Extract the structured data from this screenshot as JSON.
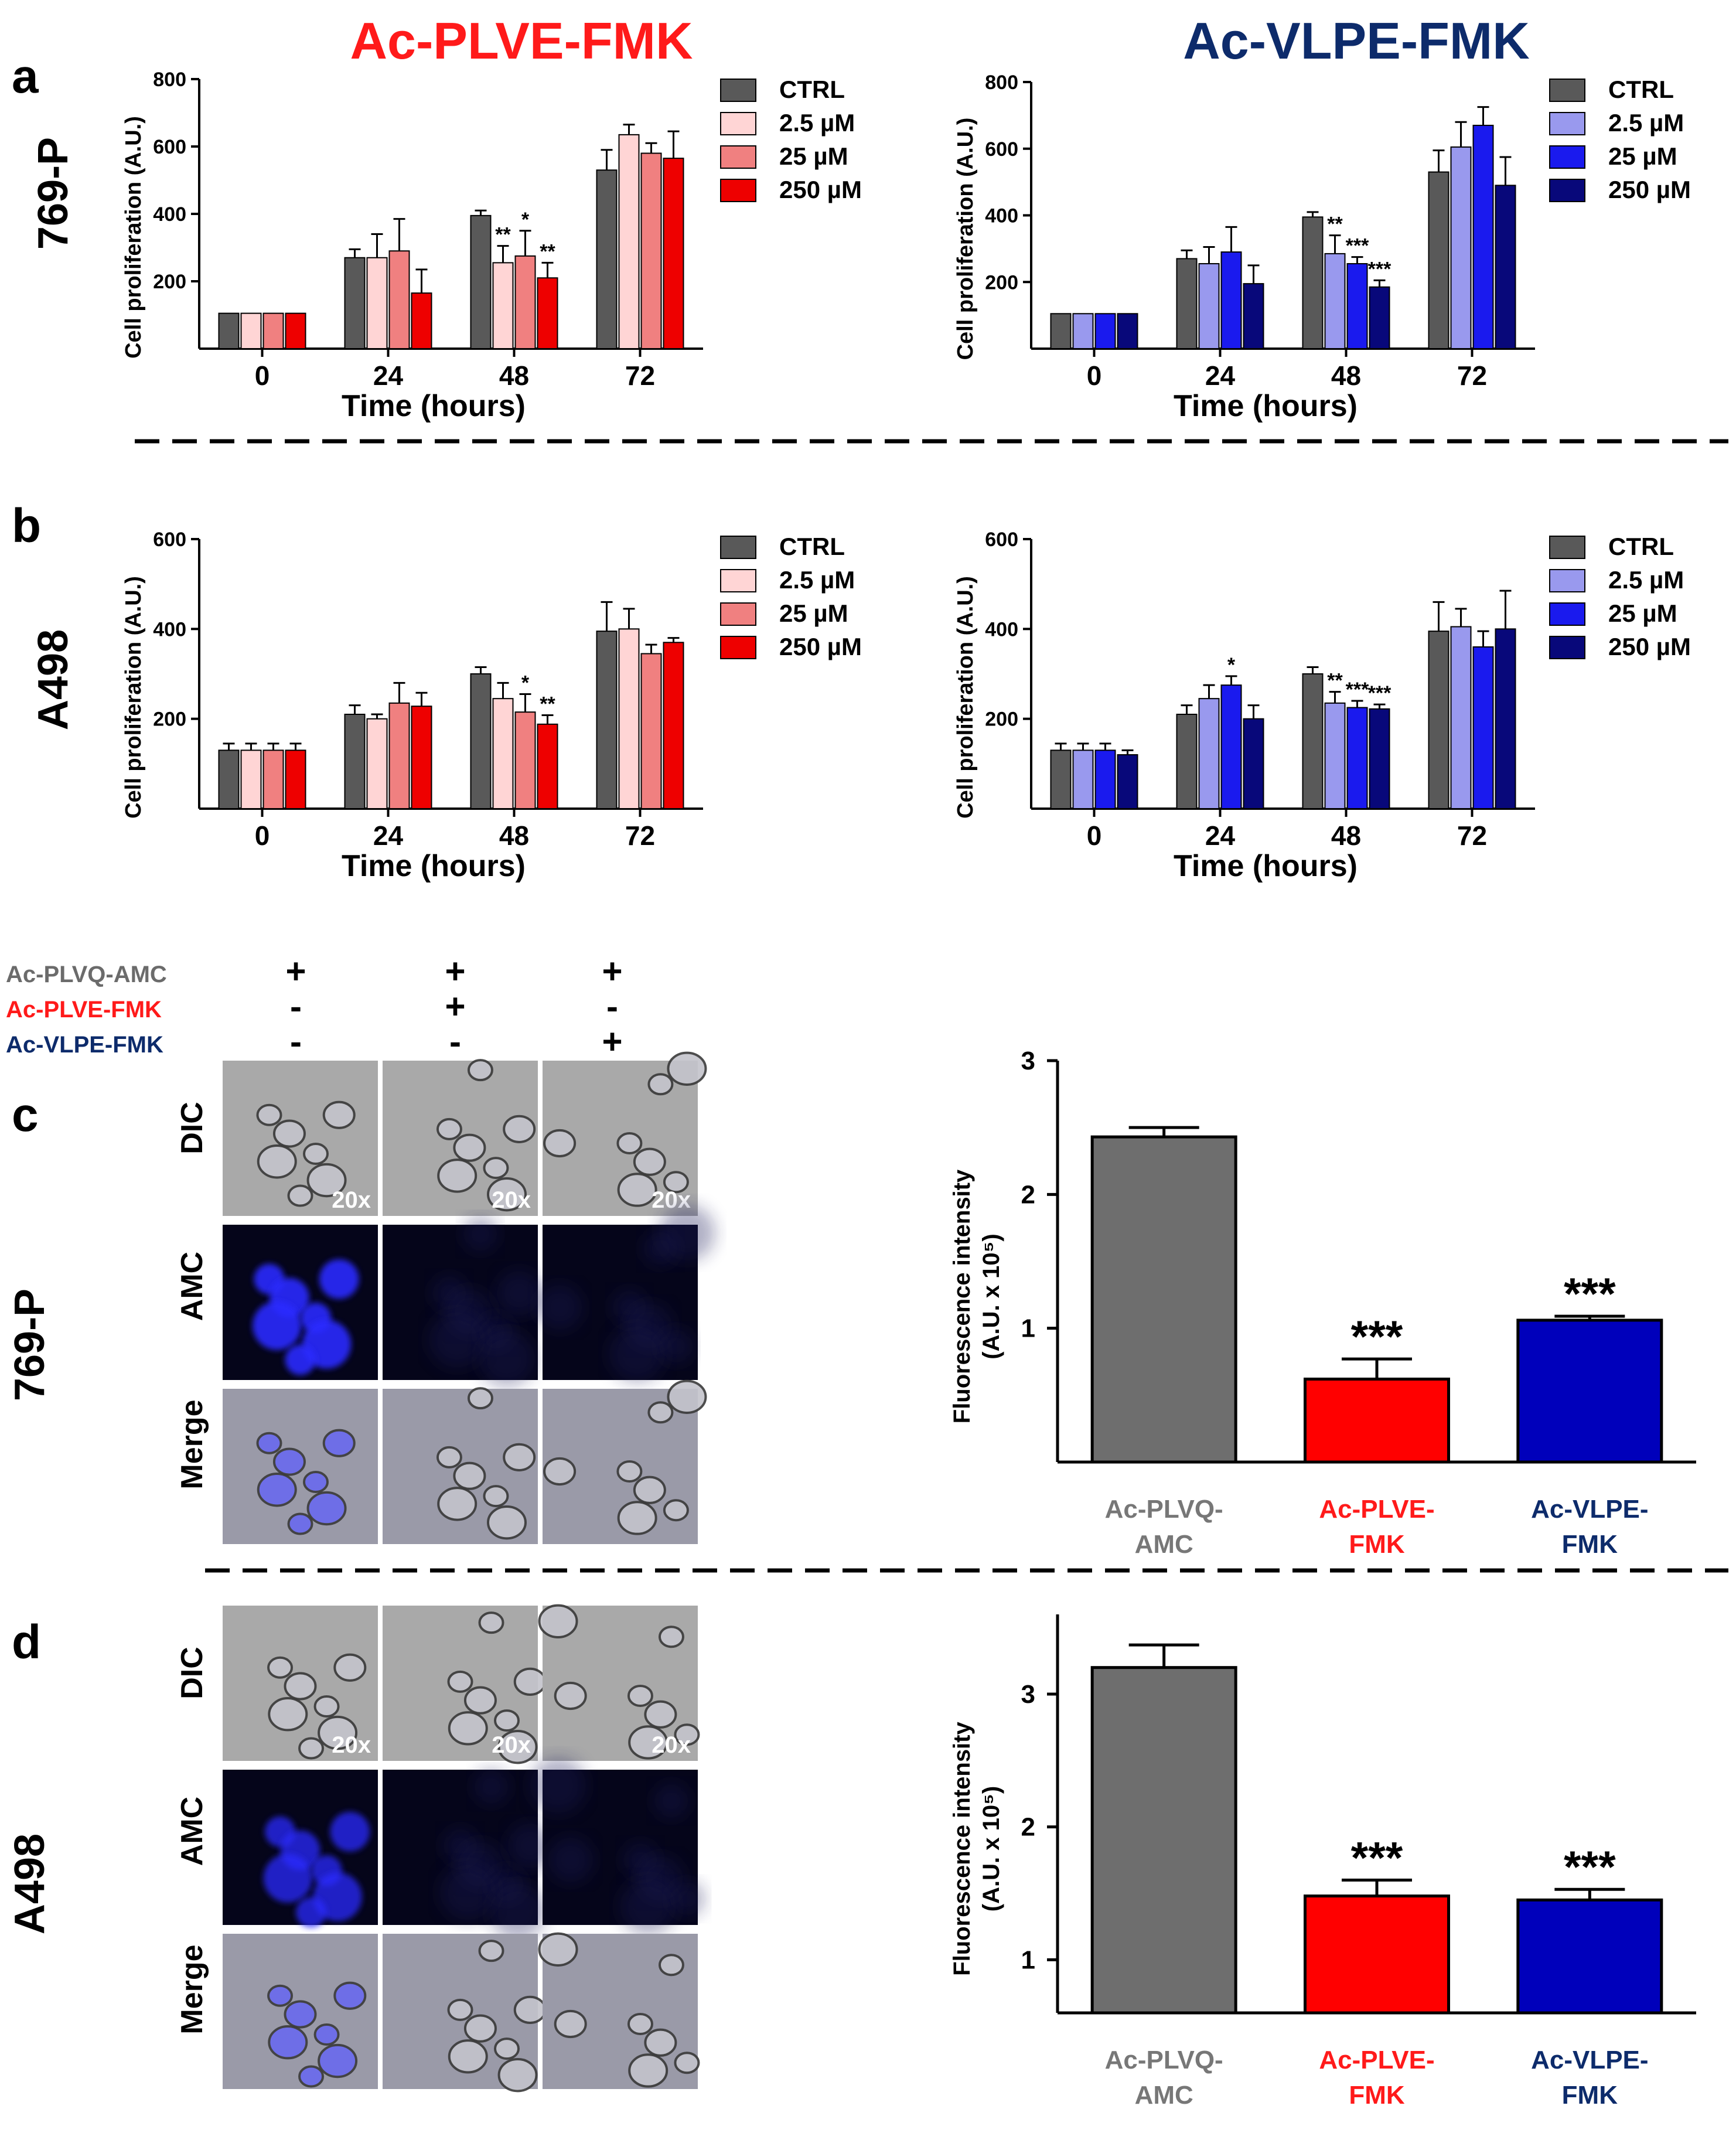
{
  "headers": {
    "left": "Ac-PLVE-FMK",
    "right": "Ac-VLPE-FMK",
    "left_color": "#ff1a1a",
    "right_color": "#0d2b6b"
  },
  "panel_letters": [
    "a",
    "b",
    "c",
    "d"
  ],
  "row_labels": {
    "a": "769-P",
    "b": "A498",
    "c": "769-P",
    "d": "A498"
  },
  "palettes": {
    "ctrl": "#595959",
    "plve": [
      "#ffd5d5",
      "#f08080",
      "#ee0000"
    ],
    "vlpe": [
      "#9999ee",
      "#1a1aee",
      "#08087a"
    ]
  },
  "chart_data": [
    {
      "id": "a-left",
      "type": "bar",
      "panel": "a",
      "treatment": "Ac-PLVE-FMK",
      "cell_line": "769-P",
      "categories": [
        "0",
        "24",
        "48",
        "72"
      ],
      "xlabel": "Time (hours)",
      "ylabel": "Cell proliferation (A.U.)",
      "ylim": [
        0,
        800
      ],
      "yticks": [
        200,
        400,
        600,
        800
      ],
      "legend": [
        "CTRL",
        "2.5 µM",
        "25 µM",
        "250 µM"
      ],
      "legend_position": "right",
      "series": [
        {
          "name": "CTRL",
          "values": [
            105,
            270,
            395,
            530
          ],
          "errors": [
            0,
            25,
            15,
            60
          ],
          "sig": [
            "",
            "",
            "",
            ""
          ]
        },
        {
          "name": "2.5 µM",
          "values": [
            105,
            270,
            255,
            635
          ],
          "errors": [
            0,
            70,
            50,
            30
          ],
          "sig": [
            "",
            "",
            "**",
            ""
          ]
        },
        {
          "name": "25 µM",
          "values": [
            105,
            290,
            275,
            580
          ],
          "errors": [
            0,
            95,
            75,
            30
          ],
          "sig": [
            "",
            "",
            "*",
            ""
          ]
        },
        {
          "name": "250 µM",
          "values": [
            105,
            165,
            210,
            565
          ],
          "errors": [
            0,
            70,
            45,
            80
          ],
          "sig": [
            "",
            "",
            "**",
            ""
          ]
        }
      ]
    },
    {
      "id": "a-right",
      "type": "bar",
      "panel": "a",
      "treatment": "Ac-VLPE-FMK",
      "cell_line": "769-P",
      "categories": [
        "0",
        "24",
        "48",
        "72"
      ],
      "xlabel": "Time (hours)",
      "ylabel": "Cell proliferation (A.U.)",
      "ylim": [
        0,
        800
      ],
      "yticks": [
        200,
        400,
        600,
        800
      ],
      "legend": [
        "CTRL",
        "2.5 µM",
        "25 µM",
        "250 µM"
      ],
      "legend_position": "right",
      "series": [
        {
          "name": "CTRL",
          "values": [
            105,
            270,
            395,
            530
          ],
          "errors": [
            0,
            25,
            15,
            65
          ],
          "sig": [
            "",
            "",
            "",
            ""
          ]
        },
        {
          "name": "2.5 µM",
          "values": [
            105,
            255,
            285,
            605
          ],
          "errors": [
            0,
            50,
            55,
            75
          ],
          "sig": [
            "",
            "",
            "**",
            ""
          ]
        },
        {
          "name": "25 µM",
          "values": [
            105,
            290,
            255,
            670
          ],
          "errors": [
            0,
            75,
            20,
            55
          ],
          "sig": [
            "",
            "",
            "***",
            ""
          ]
        },
        {
          "name": "250 µM",
          "values": [
            105,
            195,
            185,
            490
          ],
          "errors": [
            0,
            55,
            20,
            85
          ],
          "sig": [
            "",
            "",
            "***",
            ""
          ]
        }
      ]
    },
    {
      "id": "b-left",
      "type": "bar",
      "panel": "b",
      "treatment": "Ac-PLVE-FMK",
      "cell_line": "A498",
      "categories": [
        "0",
        "24",
        "48",
        "72"
      ],
      "xlabel": "Time (hours)",
      "ylabel": "Cell proliferation (A.U.)",
      "ylim": [
        0,
        600
      ],
      "yticks": [
        200,
        400,
        600
      ],
      "legend": [
        "CTRL",
        "2.5 µM",
        "25 µM",
        "250 µM"
      ],
      "legend_position": "right",
      "series": [
        {
          "name": "CTRL",
          "values": [
            130,
            210,
            300,
            395
          ],
          "errors": [
            15,
            20,
            15,
            65
          ],
          "sig": [
            "",
            "",
            "",
            ""
          ]
        },
        {
          "name": "2.5 µM",
          "values": [
            130,
            200,
            245,
            400
          ],
          "errors": [
            15,
            10,
            35,
            45
          ],
          "sig": [
            "",
            "",
            "",
            ""
          ]
        },
        {
          "name": "25 µM",
          "values": [
            130,
            235,
            215,
            345
          ],
          "errors": [
            15,
            45,
            40,
            20
          ],
          "sig": [
            "",
            "",
            "*",
            ""
          ]
        },
        {
          "name": "250 µM",
          "values": [
            130,
            228,
            188,
            370
          ],
          "errors": [
            15,
            30,
            20,
            10
          ],
          "sig": [
            "",
            "",
            "**",
            ""
          ]
        }
      ]
    },
    {
      "id": "b-right",
      "type": "bar",
      "panel": "b",
      "treatment": "Ac-VLPE-FMK",
      "cell_line": "A498",
      "categories": [
        "0",
        "24",
        "48",
        "72"
      ],
      "xlabel": "Time (hours)",
      "ylabel": "Cell proliferation (A.U.)",
      "ylim": [
        0,
        600
      ],
      "yticks": [
        200,
        400,
        600
      ],
      "legend": [
        "CTRL",
        "2.5 µM",
        "25 µM",
        "250 µM"
      ],
      "legend_position": "right",
      "series": [
        {
          "name": "CTRL",
          "values": [
            130,
            210,
            300,
            395
          ],
          "errors": [
            15,
            20,
            15,
            65
          ],
          "sig": [
            "",
            "",
            "",
            ""
          ]
        },
        {
          "name": "2.5 µM",
          "values": [
            130,
            245,
            235,
            405
          ],
          "errors": [
            15,
            30,
            25,
            40
          ],
          "sig": [
            "",
            "",
            "**",
            ""
          ]
        },
        {
          "name": "25 µM",
          "values": [
            130,
            275,
            225,
            360
          ],
          "errors": [
            15,
            20,
            15,
            35
          ],
          "sig": [
            "",
            "*",
            "***",
            ""
          ]
        },
        {
          "name": "250 µM",
          "values": [
            120,
            200,
            222,
            400
          ],
          "errors": [
            10,
            30,
            10,
            85
          ],
          "sig": [
            "",
            "",
            "***",
            ""
          ]
        }
      ]
    },
    {
      "id": "c-bar",
      "type": "bar",
      "panel": "c",
      "cell_line": "769-P",
      "categories": [
        "Ac-PLVQ-AMC",
        "Ac-PLVE-FMK",
        "Ac-VLPE-FMK"
      ],
      "category_lines": [
        [
          "Ac-PLVQ-",
          "AMC"
        ],
        [
          "Ac-PLVE-",
          "FMK"
        ],
        [
          "Ac-VLPE-",
          "FMK"
        ]
      ],
      "category_colors": [
        "#777777",
        "#ff1a1a",
        "#0d2b6b"
      ],
      "ylabel": "Fluorescence intensity",
      "ylabel2": "(A.U. x 10⁵)",
      "ylim": [
        0,
        3
      ],
      "yticks": [
        1,
        2,
        3
      ],
      "values": [
        2.43,
        0.62,
        1.06
      ],
      "errors": [
        0.07,
        0.15,
        0.03
      ],
      "colors": [
        "#6e6e6e",
        "#ff0000",
        "#0000bb"
      ],
      "sig": [
        "",
        "***",
        "***"
      ]
    },
    {
      "id": "d-bar",
      "type": "bar",
      "panel": "d",
      "cell_line": "A498",
      "categories": [
        "Ac-PLVQ-AMC",
        "Ac-PLVE-FMK",
        "Ac-VLPE-FMK"
      ],
      "category_lines": [
        [
          "Ac-PLVQ-",
          "AMC"
        ],
        [
          "Ac-PLVE-",
          "FMK"
        ],
        [
          "Ac-VLPE-",
          "FMK"
        ]
      ],
      "category_colors": [
        "#777777",
        "#ff1a1a",
        "#0d2b6b"
      ],
      "ylabel": "Fluorescence intensity",
      "ylabel2": "(A.U. x 10⁵)",
      "ylim": [
        0.6,
        3.6
      ],
      "yticks": [
        1,
        2,
        3
      ],
      "values": [
        3.2,
        1.48,
        1.45
      ],
      "errors": [
        0.17,
        0.12,
        0.08
      ],
      "colors": [
        "#6e6e6e",
        "#ff0000",
        "#0000bb"
      ],
      "sig": [
        "",
        "***",
        "***"
      ]
    }
  ],
  "condition_matrix": {
    "rows": [
      {
        "label": "Ac-PLVQ-AMC",
        "color": "#6b6b6b",
        "marks": [
          "+",
          "+",
          "+"
        ]
      },
      {
        "label": "Ac-PLVE-FMK",
        "color": "#ff1a1a",
        "marks": [
          "-",
          "+",
          "-"
        ]
      },
      {
        "label": "Ac-VLPE-FMK",
        "color": "#0d2b6b",
        "marks": [
          "-",
          "-",
          "+"
        ]
      }
    ]
  },
  "microscopy": {
    "row_labels": [
      "DIC",
      "AMC",
      "Merge"
    ],
    "magnification": "20x",
    "c": {
      "amc_intensity": [
        0.9,
        0.08,
        0.12
      ]
    },
    "d": {
      "amc_intensity": [
        0.75,
        0.08,
        0.1
      ]
    }
  }
}
